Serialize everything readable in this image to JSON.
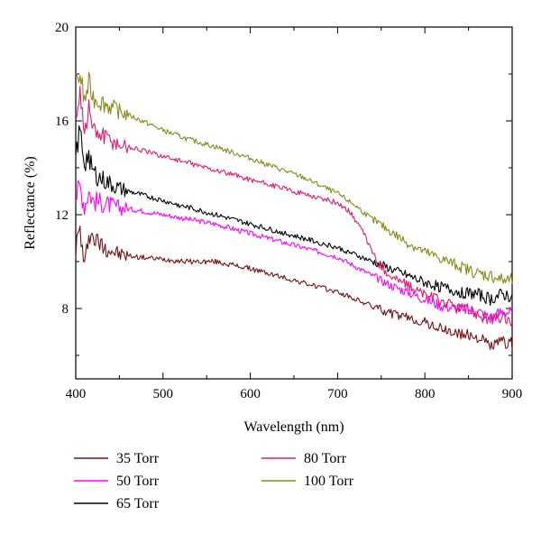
{
  "chart_data": {
    "type": "line",
    "xlabel": "Wavelength (nm)",
    "ylabel": "Reflectance (%)",
    "xlim": [
      400,
      900
    ],
    "ylim": [
      5,
      20
    ],
    "xticks": [
      400,
      500,
      600,
      700,
      800,
      900
    ],
    "yticks": [
      8,
      12,
      16,
      20
    ],
    "grid": false,
    "legend_position": "bottom",
    "series": [
      {
        "name": "35 Torr",
        "color": "#7a1010",
        "x": [
          400,
          405,
          410,
          415,
          420,
          430,
          440,
          450,
          470,
          500,
          530,
          560,
          600,
          630,
          660,
          700,
          720,
          740,
          760,
          780,
          800,
          820,
          840,
          860,
          875,
          890,
          900
        ],
        "y": [
          10.6,
          11.4,
          9.6,
          11.3,
          11.0,
          10.7,
          10.5,
          10.3,
          10.2,
          10.1,
          10.0,
          10.0,
          9.7,
          9.4,
          9.1,
          8.7,
          8.4,
          8.1,
          7.8,
          7.6,
          7.4,
          7.1,
          6.9,
          6.8,
          6.4,
          6.6,
          6.5
        ]
      },
      {
        "name": "50 Torr",
        "color": "#ff00ff",
        "x": [
          400,
          405,
          410,
          415,
          420,
          430,
          440,
          450,
          470,
          500,
          530,
          560,
          600,
          630,
          660,
          700,
          720,
          740,
          760,
          780,
          800,
          820,
          840,
          860,
          875,
          890,
          900
        ],
        "y": [
          12.8,
          13.2,
          12.4,
          13.0,
          12.6,
          12.5,
          12.4,
          12.3,
          12.2,
          12.0,
          11.8,
          11.6,
          11.2,
          10.9,
          10.6,
          10.2,
          9.8,
          9.4,
          9.0,
          8.7,
          8.4,
          8.1,
          8.0,
          7.9,
          7.6,
          7.9,
          7.8
        ]
      },
      {
        "name": "65 Torr",
        "color": "#000000",
        "x": [
          400,
          405,
          410,
          415,
          420,
          430,
          440,
          450,
          470,
          500,
          530,
          560,
          600,
          630,
          660,
          700,
          720,
          740,
          760,
          780,
          800,
          820,
          840,
          860,
          875,
          890,
          900
        ],
        "y": [
          14.5,
          15.6,
          14.2,
          14.6,
          13.8,
          13.5,
          13.3,
          13.1,
          12.9,
          12.6,
          12.3,
          12.0,
          11.6,
          11.3,
          11.0,
          10.6,
          10.3,
          10.0,
          9.7,
          9.4,
          9.1,
          8.9,
          8.7,
          8.6,
          8.4,
          8.6,
          8.5
        ]
      },
      {
        "name": "80 Torr",
        "color": "#e8186b",
        "x": [
          400,
          405,
          410,
          415,
          420,
          430,
          440,
          450,
          470,
          500,
          530,
          560,
          600,
          630,
          660,
          700,
          715,
          730,
          745,
          760,
          780,
          800,
          820,
          840,
          860,
          875,
          890,
          900
        ],
        "y": [
          16.0,
          17.5,
          15.4,
          16.6,
          15.6,
          15.4,
          15.2,
          15.0,
          14.8,
          14.5,
          14.2,
          13.9,
          13.5,
          13.2,
          12.9,
          12.5,
          12.1,
          11.2,
          10.0,
          9.4,
          9.0,
          8.6,
          8.3,
          8.0,
          7.8,
          7.5,
          7.6,
          7.4
        ]
      },
      {
        "name": "100 Torr",
        "color": "#8b8a1a",
        "x": [
          400,
          405,
          410,
          415,
          420,
          430,
          440,
          450,
          470,
          500,
          530,
          560,
          600,
          630,
          660,
          700,
          720,
          740,
          760,
          780,
          800,
          820,
          840,
          860,
          875,
          890,
          900
        ],
        "y": [
          17.5,
          18.0,
          16.8,
          17.6,
          17.0,
          16.8,
          16.6,
          16.4,
          16.1,
          15.6,
          15.2,
          14.9,
          14.4,
          14.0,
          13.6,
          12.9,
          12.4,
          11.8,
          11.3,
          10.8,
          10.4,
          10.1,
          9.8,
          9.5,
          9.4,
          9.2,
          9.2
        ]
      }
    ],
    "legend": [
      {
        "label": "35 Torr",
        "color": "#7a1010",
        "col": 0,
        "row": 0
      },
      {
        "label": "50 Torr",
        "color": "#ff00ff",
        "col": 0,
        "row": 1
      },
      {
        "label": "65 Torr",
        "color": "#000000",
        "col": 0,
        "row": 2
      },
      {
        "label": "80 Torr",
        "color": "#e8186b",
        "col": 1,
        "row": 0
      },
      {
        "label": "100 Torr",
        "color": "#8b8a1a",
        "col": 1,
        "row": 1
      }
    ]
  }
}
